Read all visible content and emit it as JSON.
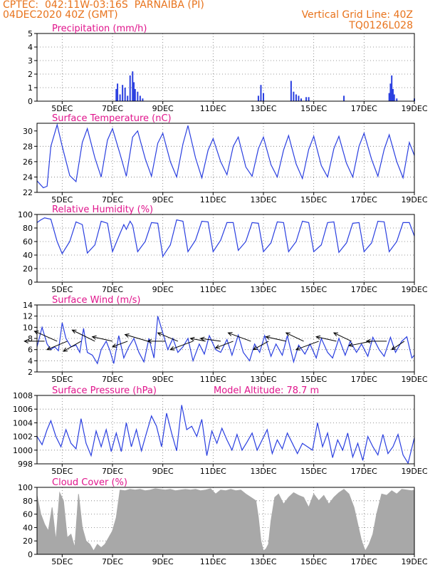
{
  "header": {
    "line1": "CPTEC:  042:11W-03:16S  PARNAIBA (PI)",
    "line2": "04DEC2020 40Z (GMT)",
    "grid_note": "Vertical Grid Line: 40Z",
    "model_code": "TQ0126L028"
  },
  "colors": {
    "header": "#e8731c",
    "panel_title": "#e0158c",
    "series": "#2a3fe0",
    "cloud": "#a8a8a8",
    "wind_arrow": "#000000"
  },
  "x_ticks": [
    "5DEC",
    "7DEC",
    "9DEC",
    "11DEC",
    "13DEC",
    "15DEC",
    "17DEC",
    "19DEC"
  ],
  "x_tick_days": [
    5,
    7,
    9,
    11,
    13,
    15,
    17,
    19
  ],
  "x_range_days": [
    4.0,
    19.0
  ],
  "chart_data": [
    {
      "type": "bar",
      "title": "Precipitation (mm/h)",
      "ylim": [
        0,
        5
      ],
      "yticks": [
        "0",
        "1",
        "2",
        "3",
        "4",
        "5"
      ],
      "grid": true,
      "x": [
        7.15,
        7.2,
        7.3,
        7.4,
        7.5,
        7.6,
        7.7,
        7.8,
        7.85,
        7.9,
        8.0,
        8.1,
        8.2,
        12.8,
        12.9,
        13.0,
        14.1,
        14.2,
        14.3,
        14.4,
        14.5,
        14.7,
        14.8,
        16.2,
        18.0,
        18.05,
        18.1,
        18.15,
        18.2,
        18.3,
        19.0
      ],
      "values": [
        0.9,
        1.3,
        0.5,
        1.2,
        1.0,
        0.4,
        1.9,
        2.2,
        1.4,
        0.9,
        0.7,
        0.4,
        0.2,
        0.4,
        1.2,
        0.6,
        1.5,
        0.7,
        0.5,
        0.4,
        0.2,
        0.3,
        0.3,
        0.4,
        0.6,
        1.3,
        1.9,
        0.9,
        0.5,
        0.2,
        0.2
      ]
    },
    {
      "type": "line",
      "title": "Surface Temperature (nC)",
      "ylim": [
        22,
        31
      ],
      "yticks": [
        "22",
        "24",
        "26",
        "28",
        "30"
      ],
      "grid": true,
      "x": [
        4.0,
        4.25,
        4.4,
        4.55,
        4.8,
        5.0,
        5.3,
        5.55,
        5.8,
        6.0,
        6.3,
        6.55,
        6.8,
        7.0,
        7.3,
        7.55,
        7.8,
        8.0,
        8.3,
        8.55,
        8.8,
        9.0,
        9.3,
        9.55,
        9.8,
        10.0,
        10.3,
        10.55,
        10.8,
        11.0,
        11.3,
        11.55,
        11.8,
        12.0,
        12.3,
        12.55,
        12.8,
        13.0,
        13.3,
        13.55,
        13.8,
        14.0,
        14.3,
        14.55,
        14.8,
        15.0,
        15.3,
        15.55,
        15.8,
        16.0,
        16.3,
        16.55,
        16.8,
        17.0,
        17.3,
        17.55,
        17.8,
        18.0,
        18.3,
        18.55,
        18.8,
        19.0
      ],
      "values": [
        23.5,
        22.6,
        22.8,
        28.0,
        30.8,
        28.0,
        24.2,
        23.4,
        28.5,
        30.3,
        26.5,
        24.0,
        28.8,
        30.3,
        27.0,
        24.1,
        29.2,
        30.0,
        26.4,
        24.1,
        28.4,
        29.7,
        26.0,
        24.0,
        28.3,
        30.7,
        26.5,
        23.9,
        27.5,
        29.0,
        26.0,
        24.3,
        28.0,
        29.2,
        25.3,
        24.1,
        27.7,
        29.2,
        25.6,
        24.0,
        27.5,
        29.4,
        25.7,
        23.8,
        27.6,
        29.3,
        25.5,
        24.0,
        27.7,
        29.3,
        25.8,
        24.0,
        28.0,
        29.7,
        26.3,
        24.1,
        27.6,
        29.5,
        26.0,
        23.9,
        28.5,
        26.8
      ]
    },
    {
      "type": "line",
      "title": "Relative Humidity (%)",
      "ylim": [
        0,
        100
      ],
      "yticks": [
        "0",
        "20",
        "40",
        "60",
        "80",
        "100"
      ],
      "grid": true,
      "x": [
        4.0,
        4.15,
        4.3,
        4.55,
        4.8,
        5.0,
        5.3,
        5.55,
        5.8,
        6.0,
        6.3,
        6.55,
        6.8,
        7.0,
        7.3,
        7.45,
        7.55,
        7.7,
        7.8,
        8.0,
        8.3,
        8.55,
        8.8,
        9.0,
        9.3,
        9.55,
        9.8,
        10.0,
        10.3,
        10.55,
        10.8,
        11.0,
        11.3,
        11.55,
        11.8,
        12.0,
        12.3,
        12.55,
        12.8,
        13.0,
        13.3,
        13.55,
        13.8,
        14.0,
        14.3,
        14.55,
        14.8,
        15.0,
        15.3,
        15.55,
        15.8,
        16.0,
        16.3,
        16.55,
        16.8,
        17.0,
        17.3,
        17.55,
        17.8,
        18.0,
        18.3,
        18.55,
        18.8,
        19.0
      ],
      "values": [
        88,
        92,
        95,
        93,
        60,
        42,
        60,
        89,
        85,
        43,
        55,
        90,
        87,
        45,
        72,
        85,
        78,
        90,
        84,
        45,
        60,
        88,
        87,
        38,
        55,
        92,
        90,
        45,
        62,
        90,
        89,
        45,
        62,
        88,
        88,
        47,
        60,
        88,
        87,
        45,
        58,
        89,
        88,
        45,
        60,
        90,
        88,
        45,
        55,
        88,
        89,
        44,
        58,
        87,
        88,
        45,
        58,
        90,
        89,
        45,
        60,
        88,
        88,
        68
      ]
    },
    {
      "type": "line",
      "title": "Surface Wind (m/s)",
      "ylim": [
        2,
        14
      ],
      "yticks": [
        "2",
        "4",
        "6",
        "8",
        "10",
        "12",
        "14"
      ],
      "grid": true,
      "x": [
        4.0,
        4.2,
        4.4,
        4.55,
        4.7,
        4.85,
        5.0,
        5.15,
        5.35,
        5.55,
        5.7,
        5.85,
        6.0,
        6.2,
        6.4,
        6.55,
        6.75,
        6.9,
        7.05,
        7.25,
        7.45,
        7.65,
        7.85,
        8.05,
        8.25,
        8.45,
        8.65,
        8.8,
        9.0,
        9.2,
        9.4,
        9.6,
        9.8,
        10.0,
        10.2,
        10.45,
        10.65,
        10.85,
        11.1,
        11.3,
        11.55,
        11.75,
        12.0,
        12.2,
        12.45,
        12.65,
        12.85,
        13.05,
        13.3,
        13.5,
        13.75,
        13.95,
        14.2,
        14.4,
        14.65,
        14.85,
        15.1,
        15.3,
        15.55,
        15.75,
        16.0,
        16.25,
        16.45,
        16.7,
        16.9,
        17.15,
        17.35,
        17.6,
        17.8,
        18.05,
        18.25,
        18.5,
        18.7,
        18.9,
        19.0
      ],
      "values": [
        6.5,
        10.0,
        7.0,
        6.0,
        6.5,
        5.8,
        10.8,
        8.0,
        6.5,
        6.8,
        5.5,
        9.8,
        5.5,
        5.0,
        3.5,
        6.0,
        7.5,
        5.8,
        3.5,
        8.5,
        4.5,
        6.5,
        8.0,
        5.5,
        3.8,
        8.0,
        4.5,
        12.0,
        9.0,
        6.0,
        8.0,
        5.5,
        6.5,
        8.0,
        4.0,
        7.0,
        5.2,
        8.5,
        6.0,
        5.5,
        7.8,
        5.0,
        8.6,
        5.5,
        4.0,
        7.0,
        5.5,
        8.5,
        4.8,
        7.0,
        5.0,
        8.5,
        3.8,
        6.8,
        5.2,
        7.0,
        4.5,
        8.0,
        5.5,
        4.5,
        8.0,
        5.0,
        7.5,
        5.5,
        7.0,
        4.8,
        8.2,
        6.0,
        4.8,
        8.2,
        5.5,
        7.5,
        8.3,
        4.5,
        5.0
      ],
      "arrows_x": [
        4.3,
        4.8,
        5.2,
        5.75,
        6.3,
        7.0,
        7.6,
        8.4,
        9.1,
        9.6,
        10.2,
        10.7,
        11.3,
        11.8,
        12.5,
        13.2,
        13.9,
        14.6,
        15.2,
        15.9,
        16.5,
        17.3,
        17.9,
        18.6
      ],
      "arrows_dx": [
        0.8,
        0.9,
        0.8,
        0.7,
        0.9,
        0.8,
        0.6,
        0.9,
        0.7,
        0.8,
        0.9,
        0.6,
        0.8,
        0.7,
        0.9,
        0.6,
        0.8,
        0.7,
        0.9,
        0.8,
        0.7,
        0.9,
        0.8,
        0.5
      ],
      "arrows_dy": [
        0.0,
        1.8,
        -1.5,
        -1.8,
        2.0,
        0.8,
        -1.0,
        1.2,
        0.0,
        1.5,
        -1.5,
        0.5,
        0.5,
        -1.2,
        1.5,
        -1.5,
        0.8,
        1.5,
        -1.5,
        0.8,
        1.5,
        -0.8,
        0.0,
        -1.5
      ]
    },
    {
      "type": "line",
      "title": "Surface Pressure (hPa)",
      "annotation": "Model Altitude: 78.7 m",
      "ylim": [
        998,
        1008
      ],
      "yticks": [
        "998",
        "1000",
        "1002",
        "1004",
        "1006",
        "1008"
      ],
      "grid": true,
      "x": [
        4.0,
        4.2,
        4.4,
        4.55,
        4.75,
        4.95,
        5.15,
        5.35,
        5.55,
        5.75,
        5.95,
        6.15,
        6.35,
        6.55,
        6.75,
        6.95,
        7.15,
        7.35,
        7.55,
        7.75,
        7.95,
        8.15,
        8.35,
        8.55,
        8.75,
        8.95,
        9.15,
        9.35,
        9.55,
        9.75,
        9.95,
        10.15,
        10.35,
        10.55,
        10.75,
        10.95,
        11.15,
        11.35,
        11.55,
        11.75,
        11.95,
        12.15,
        12.35,
        12.55,
        12.75,
        12.95,
        13.15,
        13.35,
        13.55,
        13.75,
        13.95,
        14.15,
        14.35,
        14.55,
        14.75,
        14.95,
        15.15,
        15.35,
        15.55,
        15.75,
        15.95,
        16.15,
        16.35,
        16.55,
        16.75,
        16.95,
        17.15,
        17.35,
        17.55,
        17.75,
        17.95,
        18.15,
        18.35,
        18.55,
        18.75,
        19.0
      ],
      "values": [
        1002.0,
        1000.8,
        1003.0,
        1004.3,
        1002.0,
        1000.5,
        1003.0,
        1001.0,
        1000.2,
        1004.6,
        1001.0,
        999.2,
        1002.8,
        1000.5,
        1003.0,
        999.8,
        1002.5,
        999.8,
        1004.0,
        1000.5,
        1003.0,
        999.9,
        1002.5,
        1005.0,
        1003.5,
        1000.5,
        1005.4,
        1002.5,
        999.9,
        1006.6,
        1003.0,
        1003.5,
        1002.0,
        1004.5,
        999.2,
        1002.8,
        1001.0,
        1003.2,
        1001.5,
        1000.0,
        1002.3,
        1000.0,
        1001.2,
        1002.5,
        1000.0,
        1001.5,
        1003.0,
        999.5,
        1001.5,
        1000.2,
        1002.5,
        1001.0,
        999.5,
        1001.0,
        1000.5,
        1000.0,
        1004.0,
        1000.5,
        1002.5,
        998.9,
        1001.5,
        1000.0,
        1002.5,
        999.0,
        1001.0,
        998.5,
        1002.0,
        1000.5,
        999.3,
        1002.3,
        999.5,
        1000.5,
        1002.3,
        999.3,
        998.1,
        1001.8
      ]
    },
    {
      "type": "area",
      "title": "Cloud Cover (%)",
      "ylim": [
        0,
        100
      ],
      "yticks": [
        "0",
        "20",
        "40",
        "60",
        "80",
        "100"
      ],
      "grid": true,
      "x": [
        4.0,
        4.15,
        4.3,
        4.45,
        4.6,
        4.75,
        4.9,
        5.05,
        5.2,
        5.35,
        5.5,
        5.65,
        5.8,
        5.95,
        6.1,
        6.25,
        6.4,
        6.55,
        6.7,
        6.85,
        7.0,
        7.15,
        7.3,
        7.5,
        7.7,
        7.9,
        8.1,
        8.3,
        8.5,
        8.7,
        8.9,
        9.1,
        9.3,
        9.5,
        9.7,
        9.9,
        10.1,
        10.3,
        10.5,
        10.7,
        10.9,
        11.1,
        11.3,
        11.5,
        11.7,
        11.9,
        12.1,
        12.3,
        12.5,
        12.7,
        12.8,
        12.9,
        13.0,
        13.1,
        13.2,
        13.3,
        13.45,
        13.6,
        13.8,
        14.0,
        14.2,
        14.4,
        14.6,
        14.8,
        15.0,
        15.2,
        15.4,
        15.6,
        15.8,
        16.0,
        16.2,
        16.4,
        16.6,
        16.75,
        16.9,
        17.05,
        17.2,
        17.35,
        17.5,
        17.7,
        17.9,
        18.1,
        18.3,
        18.5,
        18.7,
        18.9,
        19.0
      ],
      "values": [
        88,
        60,
        45,
        35,
        70,
        20,
        92,
        80,
        25,
        30,
        10,
        90,
        40,
        20,
        15,
        5,
        15,
        10,
        15,
        25,
        35,
        55,
        96,
        95,
        97,
        96,
        97,
        95,
        96,
        98,
        97,
        96,
        97,
        95,
        96,
        97,
        96,
        97,
        95,
        96,
        98,
        90,
        96,
        95,
        97,
        95,
        96,
        90,
        85,
        80,
        55,
        20,
        5,
        8,
        15,
        50,
        85,
        90,
        75,
        85,
        92,
        88,
        85,
        70,
        90,
        80,
        88,
        75,
        85,
        92,
        97,
        90,
        70,
        45,
        20,
        5,
        15,
        30,
        60,
        90,
        88,
        95,
        90,
        97,
        96,
        95,
        96
      ]
    }
  ]
}
